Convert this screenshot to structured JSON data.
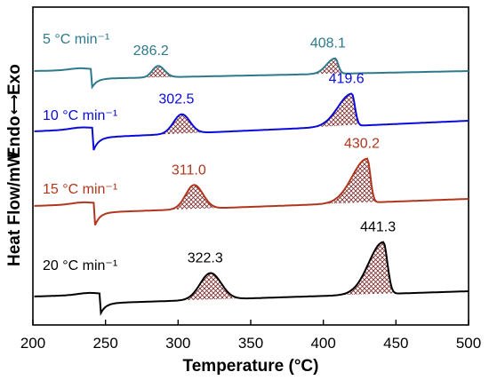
{
  "chart_data": {
    "type": "line",
    "title": "",
    "xlabel": "Temperature (°C)",
    "ylabel": "Heat Flow/mW",
    "ylabel_endo": "Endo",
    "ylabel_exo": "Exo",
    "xlim": [
      200,
      500
    ],
    "xticks": [
      200,
      250,
      300,
      350,
      400,
      450,
      500
    ],
    "yticks_shown": false,
    "grid": false,
    "legend": "none",
    "series": [
      {
        "name": "5 °C min⁻¹",
        "color": "#2e7a8c",
        "glass_transition": 240,
        "peaks": [
          {
            "label": "286.2",
            "x": 286.2,
            "start": 274,
            "end": 300,
            "height": 0.46
          },
          {
            "label": "408.1",
            "x": 408.1,
            "start": 390,
            "end": 414,
            "height": 0.62
          }
        ]
      },
      {
        "name": "10 °C min⁻¹",
        "color": "#0a0adb",
        "glass_transition": 241,
        "peaks": [
          {
            "label": "302.5",
            "x": 302.5,
            "start": 285,
            "end": 320,
            "height": 0.78
          },
          {
            "label": "419.6",
            "x": 419.6,
            "start": 390,
            "end": 425,
            "height": 1.3
          }
        ]
      },
      {
        "name": "15 °C min⁻¹",
        "color": "#b0361e",
        "glass_transition": 242,
        "peaks": [
          {
            "label": "311.0",
            "x": 311.0,
            "start": 293,
            "end": 330,
            "height": 0.9
          },
          {
            "label": "430.2",
            "x": 430.2,
            "start": 398,
            "end": 437,
            "height": 1.65
          }
        ]
      },
      {
        "name": "20 °C min⁻¹",
        "color": "#000000",
        "glass_transition": 246,
        "peaks": [
          {
            "label": "322.3",
            "x": 322.3,
            "start": 300,
            "end": 345,
            "height": 1.0
          },
          {
            "label": "441.3",
            "x": 441.3,
            "start": 410,
            "end": 450,
            "height": 1.95
          }
        ]
      }
    ]
  }
}
